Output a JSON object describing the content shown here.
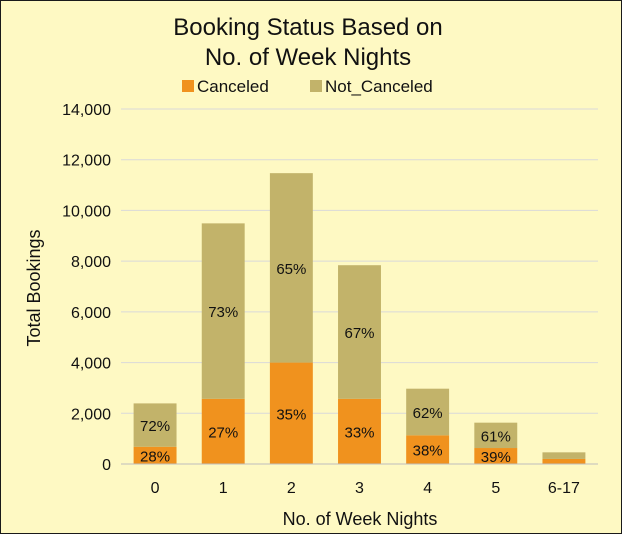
{
  "chart_data": {
    "type": "bar",
    "stacked": true,
    "title_lines": [
      "Booking Status Based on",
      "No. of Week Nights"
    ],
    "xlabel": "No. of Week Nights",
    "ylabel": "Total Bookings",
    "categories": [
      "0",
      "1",
      "2",
      "3",
      "4",
      "5",
      "6-17"
    ],
    "ylim": [
      0,
      14000
    ],
    "yticks": [
      "0",
      "2,000",
      "4,000",
      "6,000",
      "8,000",
      "10,000",
      "12,000",
      "14,000"
    ],
    "ytick_values": [
      0,
      2000,
      4000,
      6000,
      8000,
      10000,
      12000,
      14000
    ],
    "grid": true,
    "legend_position": "top",
    "series": [
      {
        "name": "Canceled",
        "color": "#f0921e",
        "values": [
          680,
          2570,
          4000,
          2570,
          1130,
          630,
          200
        ],
        "labels": [
          "28%",
          "27%",
          "35%",
          "33%",
          "38%",
          "39%",
          ""
        ]
      },
      {
        "name": "Not_Canceled",
        "color": "#c2b36a",
        "values": [
          1710,
          6920,
          7470,
          5270,
          1840,
          1000,
          260
        ],
        "labels": [
          "72%",
          "73%",
          "65%",
          "67%",
          "62%",
          "61%",
          ""
        ]
      }
    ]
  }
}
